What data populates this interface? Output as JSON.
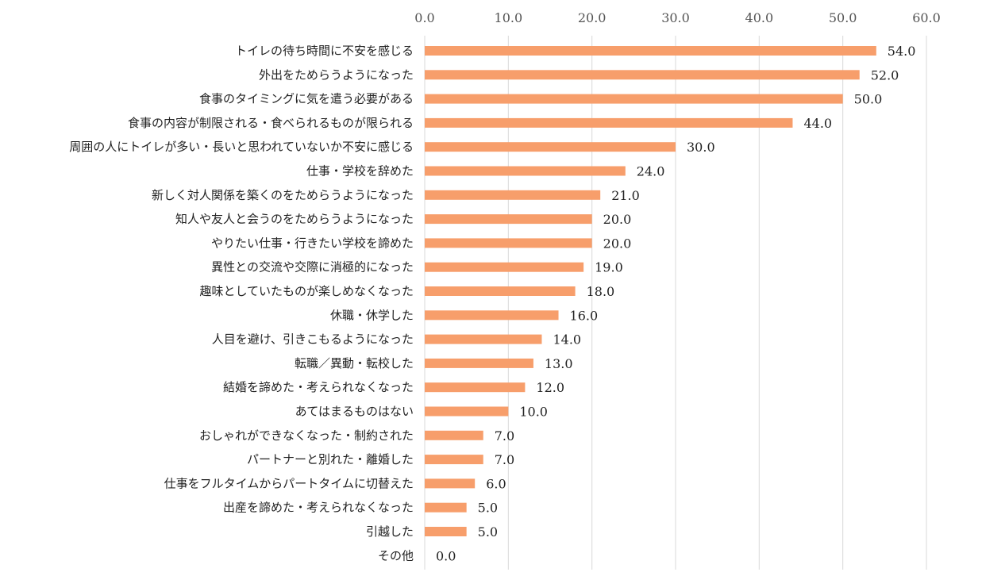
{
  "chart_data": {
    "type": "bar",
    "orientation": "horizontal",
    "title": "",
    "xlabel": "",
    "ylabel": "",
    "xlim": [
      0,
      60
    ],
    "ticks": [
      0,
      10,
      20,
      30,
      40,
      50,
      60
    ],
    "tick_labels": [
      "0.0",
      "10.0",
      "20.0",
      "30.0",
      "40.0",
      "50.0",
      "60.0"
    ],
    "tick_position": "top",
    "grid": true,
    "bar_color": "#F79E6B",
    "grid_color": "#D9D9D9",
    "categories": [
      "トイレの待ち時間に不安を感じる",
      "外出をためらうようになった",
      "食事のタイミングに気を遣う必要がある",
      "食事の内容が制限される・食べられるものが限られる",
      "周囲の人にトイレが多い・長いと思われていないか不安に感じる",
      "仕事・学校を辞めた",
      "新しく対人関係を築くのをためらうようになった",
      "知人や友人と会うのをためらうようになった",
      "やりたい仕事・行きたい学校を諦めた",
      "異性との交流や交際に消極的になった",
      "趣味としていたものが楽しめなくなった",
      "休職・休学した",
      "人目を避け、引きこもるようになった",
      "転職／異動・転校した",
      "結婚を諦めた・考えられなくなった",
      "あてはまるものはない",
      "おしゃれができなくなった・制約された",
      "パートナーと別れた・離婚した",
      "仕事をフルタイムからパートタイムに切替えた",
      "出産を諦めた・考えられなくなった",
      "引越した",
      "その他"
    ],
    "values": [
      54.0,
      52.0,
      50.0,
      44.0,
      30.0,
      24.0,
      21.0,
      20.0,
      20.0,
      19.0,
      18.0,
      16.0,
      14.0,
      13.0,
      12.0,
      10.0,
      7.0,
      7.0,
      6.0,
      5.0,
      5.0,
      0.0
    ],
    "value_labels": [
      "54.0",
      "52.0",
      "50.0",
      "44.0",
      "30.0",
      "24.0",
      "21.0",
      "20.0",
      "20.0",
      "19.0",
      "18.0",
      "16.0",
      "14.0",
      "13.0",
      "12.0",
      "10.0",
      "7.0",
      "7.0",
      "6.0",
      "5.0",
      "5.0",
      "0.0"
    ]
  }
}
